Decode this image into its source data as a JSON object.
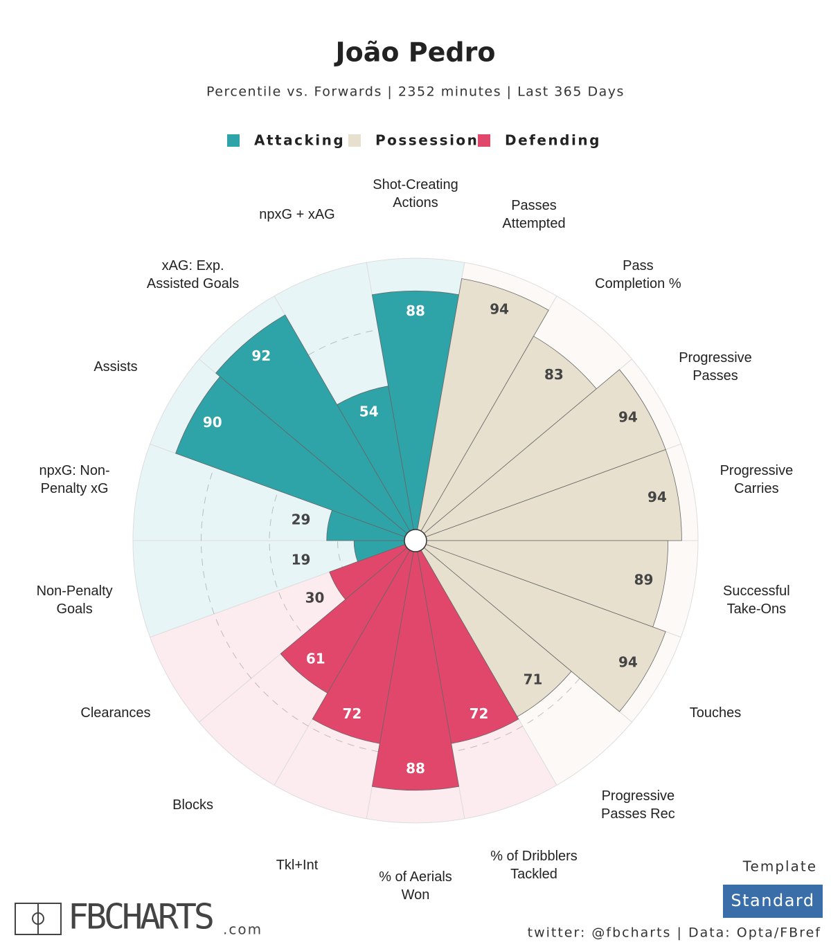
{
  "chart_data": {
    "type": "polar-bar",
    "title": "João Pedro",
    "subtitle": "Percentile vs. Forwards | 2352 minutes | Last 365 Days",
    "categories": [
      "Shot-Creating\nActions",
      "Passes\nAttempted",
      "Pass\nCompletion %",
      "Progressive\nPasses",
      "Progressive\nCarries",
      "Successful\nTake-Ons",
      "Touches",
      "Progressive\nPasses Rec",
      "% of Dribblers\nTackled",
      "% of Aerials\nWon",
      "Tkl+Int",
      "Blocks",
      "Clearances",
      "Non-Penalty\nGoals",
      "npxG: Non-\nPenalty xG",
      "Assists",
      "xAG: Exp.\nAssisted Goals",
      "npxG + xAG"
    ],
    "series": [
      {
        "name": "Attacking",
        "color": "#2ea3a8",
        "background": "#e8f5f6",
        "label_color": "#ffffff",
        "values": [
          88,
          null,
          null,
          null,
          null,
          null,
          null,
          null,
          null,
          null,
          null,
          null,
          null,
          19,
          29,
          90,
          92,
          54
        ]
      },
      {
        "name": "Possession",
        "color": "#e7e0cf",
        "background": "#fcf9f7",
        "label_color": "#444444",
        "values": [
          null,
          94,
          83,
          94,
          94,
          89,
          94,
          71,
          null,
          null,
          null,
          null,
          null,
          null,
          null,
          null,
          null,
          null
        ]
      },
      {
        "name": "Defending",
        "color": "#e0476a",
        "background": "#fcebef",
        "label_color": "#ffffff",
        "values": [
          null,
          null,
          null,
          null,
          null,
          null,
          null,
          null,
          72,
          88,
          72,
          61,
          30,
          null,
          null,
          null,
          null,
          null
        ]
      }
    ],
    "ylim": [
      0,
      100
    ],
    "yticks": [
      25,
      50,
      75
    ],
    "grid": true,
    "template_label": "Template",
    "template": "Standard",
    "logo": "FBCHARTS",
    "logo_suffix": ".com",
    "footer": "twitter: @fbcharts | Data: Opta/FBref"
  }
}
